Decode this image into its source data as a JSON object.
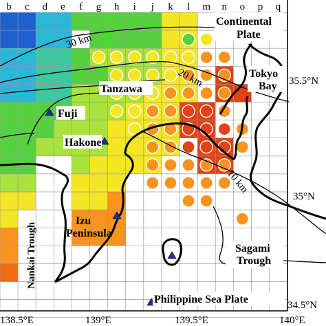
{
  "column_letters": [
    "b",
    "c",
    "d",
    "e",
    "f",
    "g",
    "h",
    "i",
    "j",
    "k",
    "l",
    "m",
    "n",
    "o",
    "p",
    "q"
  ],
  "longitude_labels": [
    "138.5°E",
    "139°E",
    "139.5°E",
    "140°E"
  ],
  "latitude_labels": [
    "35.5°N",
    "35°N",
    "34.5°N"
  ],
  "region_labels": {
    "continental": "Continental",
    "plate": "Plate",
    "tokyo": "Tokyo",
    "bay": "Bay",
    "tanzawa": "Tanzawa",
    "fuji": "Fuji",
    "hakone": "Hakone",
    "izu": "Izu",
    "peninsula": "Peninsula",
    "nankai_trough": "Nankai Trough",
    "sagami": "Sagami",
    "trough": "Trough",
    "philippine_sea_plate": "Philippine Sea Plate"
  },
  "contour_labels": [
    "30 km",
    "20 km",
    "10 km"
  ],
  "colors": {
    "blue": "#1f5fd0",
    "cyan": "#2ab8d8",
    "teal": "#3ec8a0",
    "green": "#57d040",
    "lightgreen": "#a9e23c",
    "yellow": "#f5e623",
    "gold": "#fbc21a",
    "orange": "#f7931e",
    "deeporange": "#ee6a14",
    "red": "#e14216",
    "triangle": "#1f2f9a",
    "grid": "#9a9a9a",
    "coast": "#000000"
  }
}
